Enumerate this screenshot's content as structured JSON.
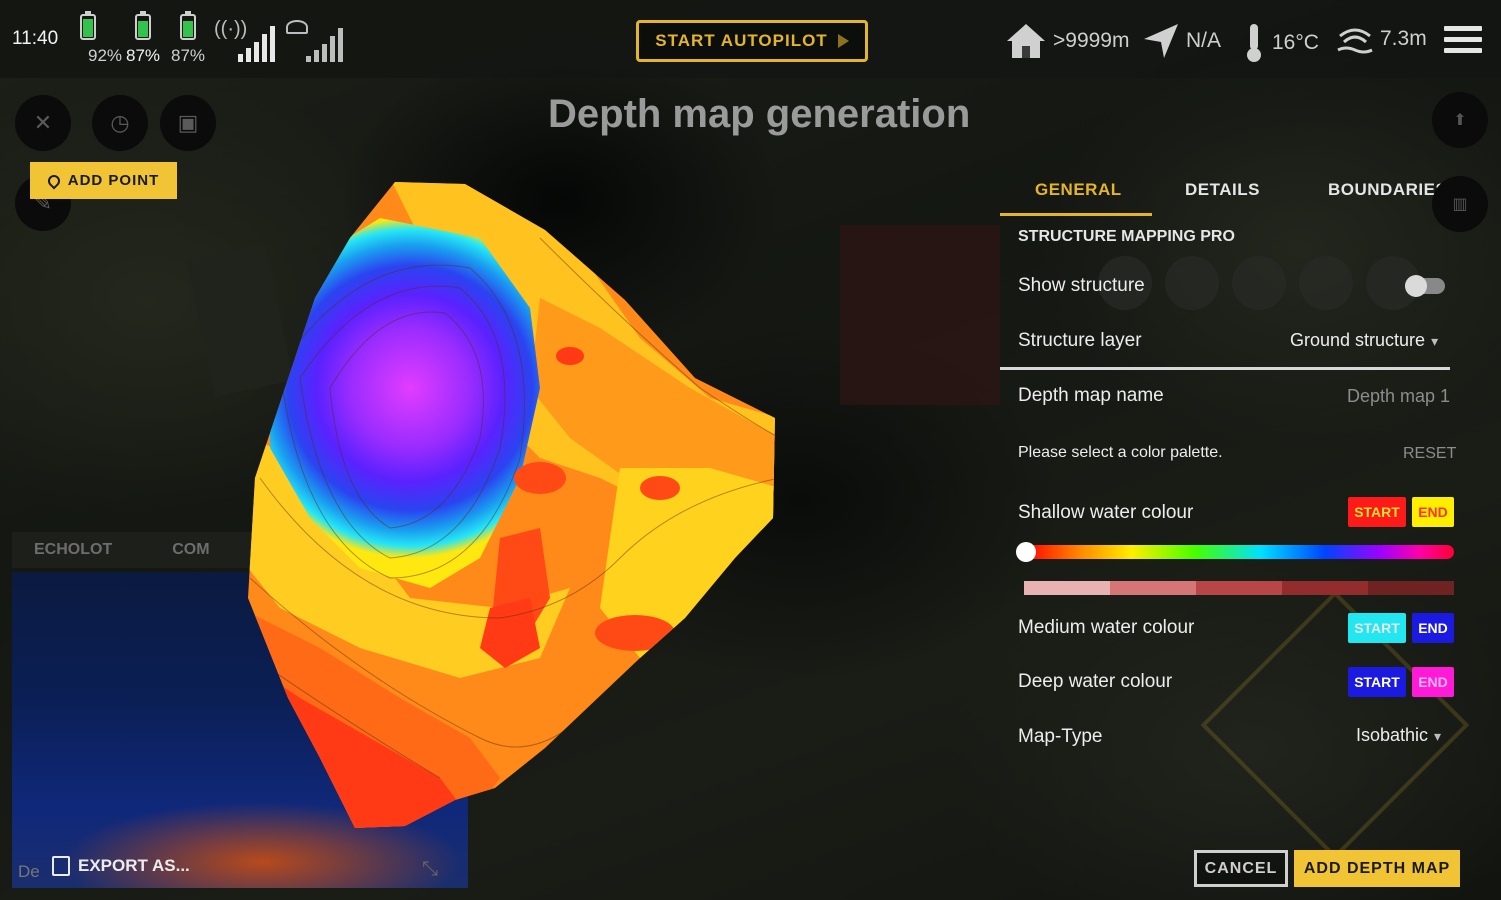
{
  "status_bar": {
    "time": "11:40",
    "batteries": [
      {
        "percent": "92%",
        "fill": 0.92
      },
      {
        "percent": "87%",
        "fill": 0.87
      },
      {
        "percent": "87%",
        "fill": 0.87
      }
    ],
    "autopilot_label": "START AUTOPILOT",
    "home_distance": ">9999m",
    "heading": "N/A",
    "temperature": "16°C",
    "depth": "7.3m"
  },
  "left_tools": {
    "add_point_label": "ADD POINT"
  },
  "echo_panel": {
    "tab_1": "ECHOLOT",
    "tab_2": "COM",
    "export_label": "EXPORT AS...",
    "side_label": "De"
  },
  "title": "Depth map generation",
  "tabs": [
    {
      "label": "GENERAL",
      "active": true
    },
    {
      "label": "DETAILS",
      "active": false
    },
    {
      "label": "BOUNDARIES",
      "active": false
    }
  ],
  "general": {
    "section_title": "STRUCTURE MAPPING PRO",
    "show_structure_label": "Show structure",
    "show_structure_on": false,
    "structure_layer_label": "Structure layer",
    "structure_layer_value": "Ground structure",
    "depth_map_name_label": "Depth map name",
    "depth_map_name_value": "Depth map 1",
    "palette_prompt": "Please select a color palette.",
    "reset_label": "RESET",
    "shallow_label": "Shallow water colour",
    "medium_label": "Medium water colour",
    "deep_label": "Deep water colour",
    "start_label": "START",
    "end_label": "END",
    "map_type_label": "Map-Type",
    "map_type_value": "Isobathic"
  },
  "colors": {
    "accent": "#e4b52a",
    "shallow_start": "#ff1a1a",
    "shallow_end": "#ffee00",
    "medium_start": "#22e6f0",
    "medium_end": "#1a1ae0",
    "deep_start": "#1a1ae0",
    "deep_end": "#ff1ad8"
  },
  "actions": {
    "cancel_label": "CANCEL",
    "add_label": "ADD DEPTH MAP"
  }
}
